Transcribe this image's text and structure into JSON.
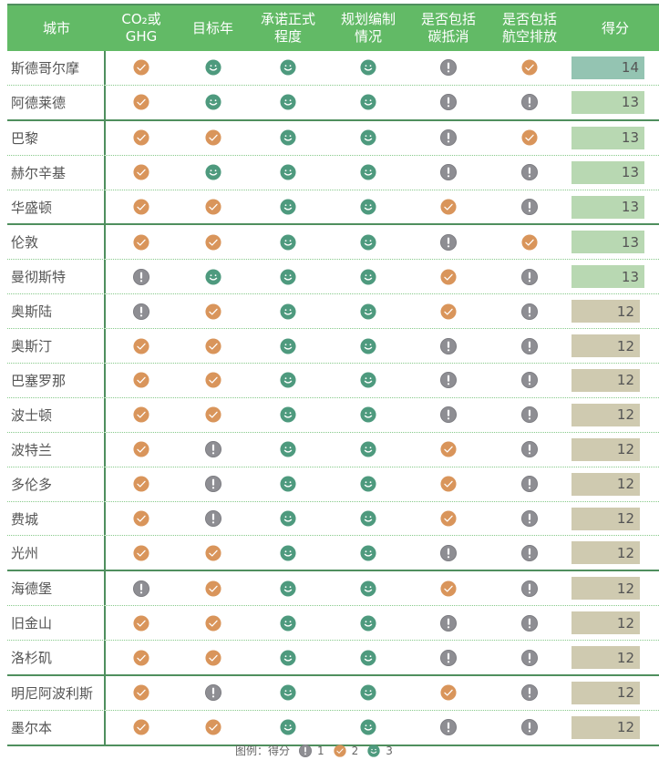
{
  "header": {
    "columns": [
      "城市",
      "CO₂或\nGHG",
      "目标年",
      "承诺正式\n程度",
      "规划编制\n情况",
      "是否包括\n碳抵消",
      "是否包括\n航空排放",
      "得分"
    ]
  },
  "colors": {
    "header_bg": "#62ba66",
    "divider": "#4f8f5e",
    "icon_1": "#8e8e93",
    "icon_2": "#d9955b",
    "icon_3": "#4e9a7e",
    "score_14": "#94c4b2",
    "score_13": "#b8d8b2",
    "score_12": "#cfcab0"
  },
  "rows": [
    {
      "city": "斯德哥尔摩",
      "scores": [
        2,
        3,
        3,
        3,
        1,
        2
      ],
      "total": "14",
      "group_end": false
    },
    {
      "city": "阿德莱德",
      "scores": [
        2,
        3,
        3,
        3,
        1,
        1
      ],
      "total": "13",
      "group_end": true
    },
    {
      "city": "巴黎",
      "scores": [
        2,
        2,
        3,
        3,
        1,
        2
      ],
      "total": "13",
      "group_end": false
    },
    {
      "city": "赫尔辛基",
      "scores": [
        2,
        3,
        3,
        3,
        1,
        1
      ],
      "total": "13",
      "group_end": false
    },
    {
      "city": "华盛顿",
      "scores": [
        2,
        2,
        3,
        3,
        2,
        1
      ],
      "total": "13",
      "group_end": true
    },
    {
      "city": "伦敦",
      "scores": [
        2,
        2,
        3,
        3,
        1,
        2
      ],
      "total": "13",
      "group_end": false
    },
    {
      "city": "曼彻斯特",
      "scores": [
        1,
        3,
        3,
        3,
        2,
        1
      ],
      "total": "13",
      "group_end": false
    },
    {
      "city": "奥斯陆",
      "scores": [
        1,
        2,
        3,
        3,
        2,
        1
      ],
      "total": "12",
      "group_end": false
    },
    {
      "city": "奥斯汀",
      "scores": [
        2,
        2,
        3,
        3,
        1,
        1
      ],
      "total": "12",
      "group_end": false
    },
    {
      "city": "巴塞罗那",
      "scores": [
        2,
        2,
        3,
        3,
        1,
        1
      ],
      "total": "12",
      "group_end": false
    },
    {
      "city": "波士顿",
      "scores": [
        2,
        2,
        3,
        3,
        1,
        1
      ],
      "total": "12",
      "group_end": false
    },
    {
      "city": "波特兰",
      "scores": [
        2,
        1,
        3,
        3,
        2,
        1
      ],
      "total": "12",
      "group_end": false
    },
    {
      "city": "多伦多",
      "scores": [
        2,
        1,
        3,
        3,
        2,
        1
      ],
      "total": "12",
      "group_end": false
    },
    {
      "city": "费城",
      "scores": [
        2,
        1,
        3,
        3,
        2,
        1
      ],
      "total": "12",
      "group_end": false
    },
    {
      "city": "光州",
      "scores": [
        2,
        2,
        3,
        3,
        1,
        1
      ],
      "total": "12",
      "group_end": true
    },
    {
      "city": "海德堡",
      "scores": [
        1,
        2,
        3,
        3,
        2,
        1
      ],
      "total": "12",
      "group_end": false
    },
    {
      "city": "旧金山",
      "scores": [
        2,
        2,
        3,
        3,
        1,
        1
      ],
      "total": "12",
      "group_end": false
    },
    {
      "city": "洛杉矶",
      "scores": [
        2,
        2,
        3,
        3,
        1,
        1
      ],
      "total": "12",
      "group_end": true
    },
    {
      "city": "明尼阿波利斯",
      "scores": [
        2,
        1,
        3,
        3,
        2,
        1
      ],
      "total": "12",
      "group_end": false
    },
    {
      "city": "墨尔本",
      "scores": [
        2,
        2,
        3,
        3,
        1,
        1
      ],
      "total": "12",
      "group_end": true
    }
  ],
  "legend": {
    "label": "图例：得分",
    "items": [
      {
        "icon": "exclamation-icon",
        "value": "1"
      },
      {
        "icon": "check-icon",
        "value": "2"
      },
      {
        "icon": "smiley-icon",
        "value": "3"
      }
    ]
  },
  "chart_data": {
    "type": "table",
    "title": "",
    "columns": [
      "城市",
      "CO₂或GHG",
      "目标年",
      "承诺正式程度",
      "规划编制情况",
      "是否包括碳抵消",
      "是否包括航空排放",
      "得分"
    ],
    "legend": {
      "1": "exclamation (grey)",
      "2": "check (orange)",
      "3": "smiley (green)"
    },
    "rows": [
      [
        "斯德哥尔摩",
        2,
        3,
        3,
        3,
        1,
        2,
        14
      ],
      [
        "阿德莱德",
        2,
        3,
        3,
        3,
        1,
        1,
        13
      ],
      [
        "巴黎",
        2,
        2,
        3,
        3,
        1,
        2,
        13
      ],
      [
        "赫尔辛基",
        2,
        3,
        3,
        3,
        1,
        1,
        13
      ],
      [
        "华盛顿",
        2,
        2,
        3,
        3,
        2,
        1,
        13
      ],
      [
        "伦敦",
        2,
        2,
        3,
        3,
        1,
        2,
        13
      ],
      [
        "曼彻斯特",
        1,
        3,
        3,
        3,
        2,
        1,
        13
      ],
      [
        "奥斯陆",
        1,
        2,
        3,
        3,
        2,
        1,
        12
      ],
      [
        "奥斯汀",
        2,
        2,
        3,
        3,
        1,
        1,
        12
      ],
      [
        "巴塞罗那",
        2,
        2,
        3,
        3,
        1,
        1,
        12
      ],
      [
        "波士顿",
        2,
        2,
        3,
        3,
        1,
        1,
        12
      ],
      [
        "波特兰",
        2,
        1,
        3,
        3,
        2,
        1,
        12
      ],
      [
        "多伦多",
        2,
        1,
        3,
        3,
        2,
        1,
        12
      ],
      [
        "费城",
        2,
        1,
        3,
        3,
        2,
        1,
        12
      ],
      [
        "光州",
        2,
        2,
        3,
        3,
        1,
        1,
        12
      ],
      [
        "海德堡",
        1,
        2,
        3,
        3,
        2,
        1,
        12
      ],
      [
        "旧金山",
        2,
        2,
        3,
        3,
        1,
        1,
        12
      ],
      [
        "洛杉矶",
        2,
        2,
        3,
        3,
        1,
        1,
        12
      ],
      [
        "明尼阿波利斯",
        2,
        1,
        3,
        3,
        2,
        1,
        12
      ],
      [
        "墨尔本",
        2,
        2,
        3,
        3,
        1,
        1,
        12
      ]
    ]
  }
}
